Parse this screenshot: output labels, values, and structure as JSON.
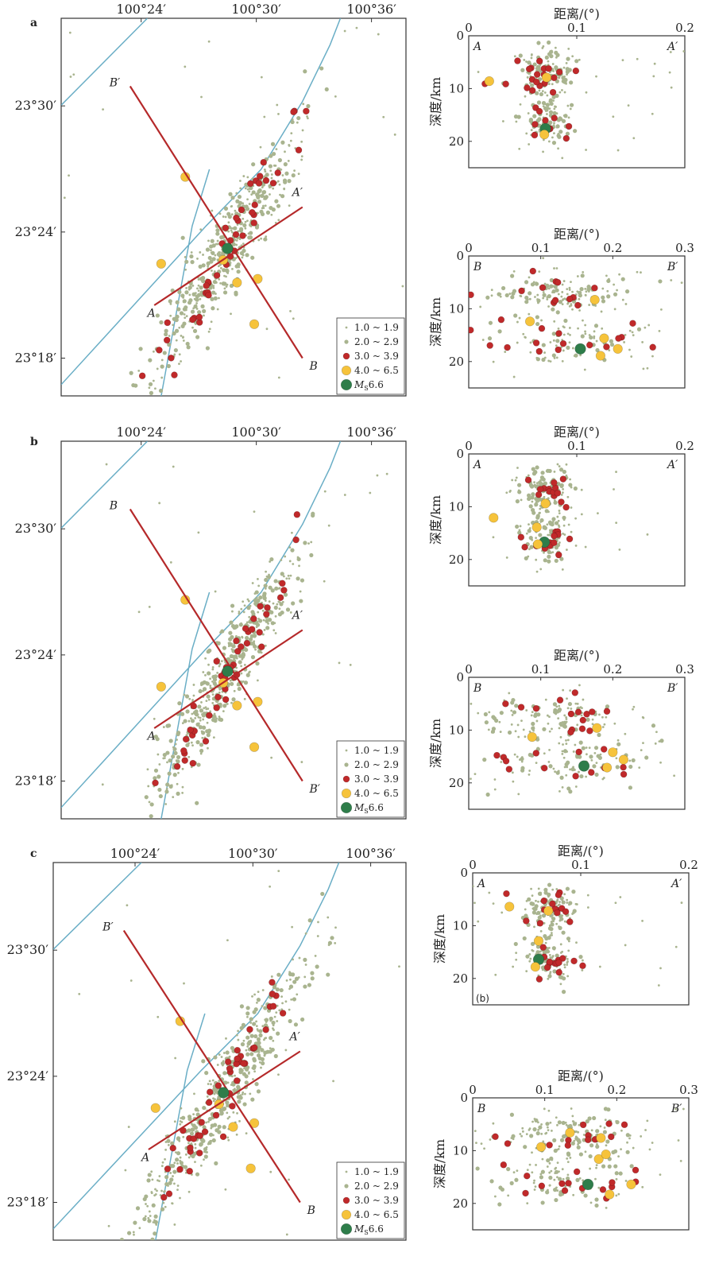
{
  "colors": {
    "fault": "#6aaec6",
    "profile": "#b5292a",
    "m1": "#a9b48f",
    "m2": "#a9b48f",
    "m3": "#c0292a",
    "m4": "#f6c33b",
    "main": "#2e7d4a"
  },
  "legend": {
    "items": [
      {
        "key": "m1",
        "label": "1.0 ~ 1.9"
      },
      {
        "key": "m2",
        "label": "2.0 ~ 2.9"
      },
      {
        "key": "m3",
        "label": "3.0 ~ 3.9"
      },
      {
        "key": "m4",
        "label": "4.0 ~ 6.5"
      },
      {
        "key": "main",
        "label_m": "M",
        "label_sub": "S",
        "label_val": "6.6"
      }
    ]
  },
  "chart_data": [
    {
      "type": "scatter",
      "panel": "a",
      "kind": "map",
      "x_ticks": [
        "100°24′",
        "100°30′",
        "100°36′"
      ],
      "y_ticks": [
        "23°30′",
        "23°24′",
        "23°18′"
      ],
      "profiles": [
        {
          "start": "A",
          "end": "A′"
        },
        {
          "start": "B′",
          "end": "B"
        }
      ],
      "mainshock": {
        "lon": 100.475,
        "lat": 23.387
      }
    },
    {
      "type": "scatter",
      "panel": "a",
      "kind": "section",
      "profile": "A",
      "start_label": "A",
      "end_label": "A′",
      "xlabel": "距离/(°)",
      "ylabel": "深度/km",
      "xlim": [
        0,
        0.2
      ],
      "ylim": [
        0,
        25
      ],
      "x_ticks": [
        "0",
        "0.1",
        "0.2"
      ],
      "y_ticks": [
        "0",
        "10",
        "20"
      ],
      "points": [
        [
          0.071,
          17.6,
          "main"
        ],
        [
          0.015,
          9.1,
          "m3"
        ],
        [
          0.019,
          8.6,
          "m4"
        ],
        [
          0.072,
          7.9,
          "m4"
        ],
        [
          0.056,
          6.3,
          "m3"
        ],
        [
          0.07,
          18.7,
          "m4"
        ]
      ]
    },
    {
      "type": "scatter",
      "panel": "a",
      "kind": "section",
      "profile": "B",
      "start_label": "B",
      "end_label": "B′",
      "xlabel": "距离/(°)",
      "ylabel": "深度/km",
      "xlim": [
        0,
        0.3
      ],
      "ylim": [
        0,
        25
      ],
      "x_ticks": [
        "0",
        "0.1",
        "0.2",
        "0.3"
      ],
      "y_ticks": [
        "0",
        "10",
        "20"
      ],
      "points": [
        [
          0.155,
          17.6,
          "main"
        ],
        [
          0.175,
          8.3,
          "m4"
        ],
        [
          0.085,
          12.4,
          "m4"
        ],
        [
          0.188,
          15.6,
          "m4"
        ],
        [
          0.207,
          17.6,
          "m4"
        ],
        [
          0.183,
          18.9,
          "m4"
        ]
      ]
    },
    {
      "type": "scatter",
      "panel": "b",
      "kind": "map",
      "x_ticks": [
        "100°24′",
        "100°30′",
        "100°36′"
      ],
      "y_ticks": [
        "23°30′",
        "23°24′",
        "23°18′"
      ],
      "profiles": [
        {
          "start": "A",
          "end": "A′"
        },
        {
          "start": "B",
          "end": "B′"
        }
      ],
      "mainshock": {
        "lon": 100.475,
        "lat": 23.387
      }
    },
    {
      "type": "scatter",
      "panel": "b",
      "kind": "section",
      "profile": "A",
      "start_label": "A",
      "end_label": "A′",
      "xlabel": "距离/(°)",
      "ylabel": "深度/km",
      "xlim": [
        0,
        0.2
      ],
      "ylim": [
        0,
        25
      ],
      "x_ticks": [
        "0",
        "0.1",
        "0.2"
      ],
      "y_ticks": [
        "0",
        "10",
        "20"
      ],
      "points": [
        [
          0.07,
          16.7,
          "main"
        ],
        [
          0.023,
          12.1,
          "m4"
        ],
        [
          0.071,
          9.4,
          "m4"
        ],
        [
          0.064,
          17.1,
          "m4"
        ],
        [
          0.063,
          13.9,
          "m4"
        ]
      ]
    },
    {
      "type": "scatter",
      "panel": "b",
      "kind": "section",
      "profile": "B",
      "start_label": "B",
      "end_label": "B′",
      "xlabel": "距离/(°)",
      "ylabel": "深度/km",
      "xlim": [
        0,
        0.3
      ],
      "ylim": [
        0,
        25
      ],
      "x_ticks": [
        "0",
        "0.1",
        "0.2",
        "0.3"
      ],
      "y_ticks": [
        "0",
        "10",
        "20"
      ],
      "points": [
        [
          0.16,
          16.8,
          "main"
        ],
        [
          0.088,
          11.3,
          "m4"
        ],
        [
          0.178,
          9.6,
          "m4"
        ],
        [
          0.2,
          14.2,
          "m4"
        ],
        [
          0.192,
          17.1,
          "m4"
        ],
        [
          0.215,
          15.6,
          "m4"
        ]
      ]
    },
    {
      "type": "scatter",
      "panel": "c",
      "kind": "map",
      "x_ticks": [
        "100°24′",
        "100°30′",
        "100°36′"
      ],
      "y_ticks": [
        "23°30′",
        "23°24′",
        "23°18′"
      ],
      "profiles": [
        {
          "start": "A",
          "end": "A′"
        },
        {
          "start": "B′",
          "end": "B"
        }
      ],
      "mainshock": {
        "lon": 100.475,
        "lat": 23.387
      }
    },
    {
      "type": "scatter",
      "panel": "c",
      "kind": "section",
      "profile": "A",
      "start_label": "A",
      "end_label": "A′",
      "xlabel": "距离/(°)",
      "ylabel": "深度/km",
      "xlim": [
        0,
        0.2
      ],
      "ylim": [
        0,
        25
      ],
      "x_ticks": [
        "0",
        "0.1",
        "0.2"
      ],
      "y_ticks": [
        "0",
        "10",
        "20"
      ],
      "note": "(b)",
      "points": [
        [
          0.061,
          16.4,
          "main"
        ],
        [
          0.034,
          6.4,
          "m4"
        ],
        [
          0.061,
          12.9,
          "m4"
        ],
        [
          0.058,
          17.8,
          "m4"
        ],
        [
          0.07,
          7.2,
          "m4"
        ]
      ]
    },
    {
      "type": "scatter",
      "panel": "c",
      "kind": "section",
      "profile": "B",
      "start_label": "B",
      "end_label": "B′",
      "xlabel": "距离/(°)",
      "ylabel": "深度/km",
      "xlim": [
        0,
        0.3
      ],
      "ylim": [
        0,
        25
      ],
      "x_ticks": [
        "0",
        "0.1",
        "0.2",
        "0.3"
      ],
      "y_ticks": [
        "0",
        "10",
        "20"
      ],
      "points": [
        [
          0.16,
          16.4,
          "main"
        ],
        [
          0.095,
          9.3,
          "m4"
        ],
        [
          0.135,
          6.6,
          "m4"
        ],
        [
          0.178,
          7.6,
          "m4"
        ],
        [
          0.175,
          11.6,
          "m4"
        ],
        [
          0.185,
          10.7,
          "m4"
        ],
        [
          0.19,
          18.3,
          "m4"
        ],
        [
          0.22,
          16.4,
          "m4"
        ]
      ]
    }
  ]
}
